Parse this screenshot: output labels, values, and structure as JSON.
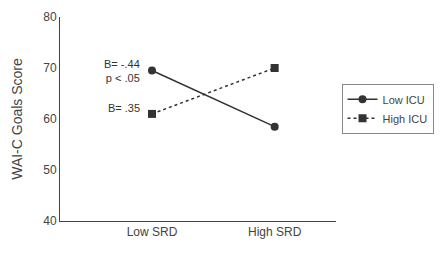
{
  "chart_data": {
    "type": "line",
    "categories": [
      "Low SRD",
      "High SRD"
    ],
    "series": [
      {
        "name": "Low ICU",
        "color": "#333333",
        "values": [
          69.5,
          58.5
        ],
        "marker": "circle",
        "line_style": "solid"
      },
      {
        "name": "High ICU",
        "color": "#333333",
        "values": [
          61.0,
          70.0
        ],
        "marker": "square",
        "line_style": "dotted"
      }
    ],
    "ylabel": "WAI-C Goals Score",
    "ylim": [
      40,
      80
    ],
    "yticks": [
      40,
      50,
      60,
      70,
      80
    ],
    "annotations": [
      {
        "text": "B= -.44\np < .05",
        "x": 0,
        "y": 69.5
      },
      {
        "text": "B= .35",
        "x": 0,
        "y": 62.2
      }
    ],
    "legend": "right",
    "grid": false
  }
}
